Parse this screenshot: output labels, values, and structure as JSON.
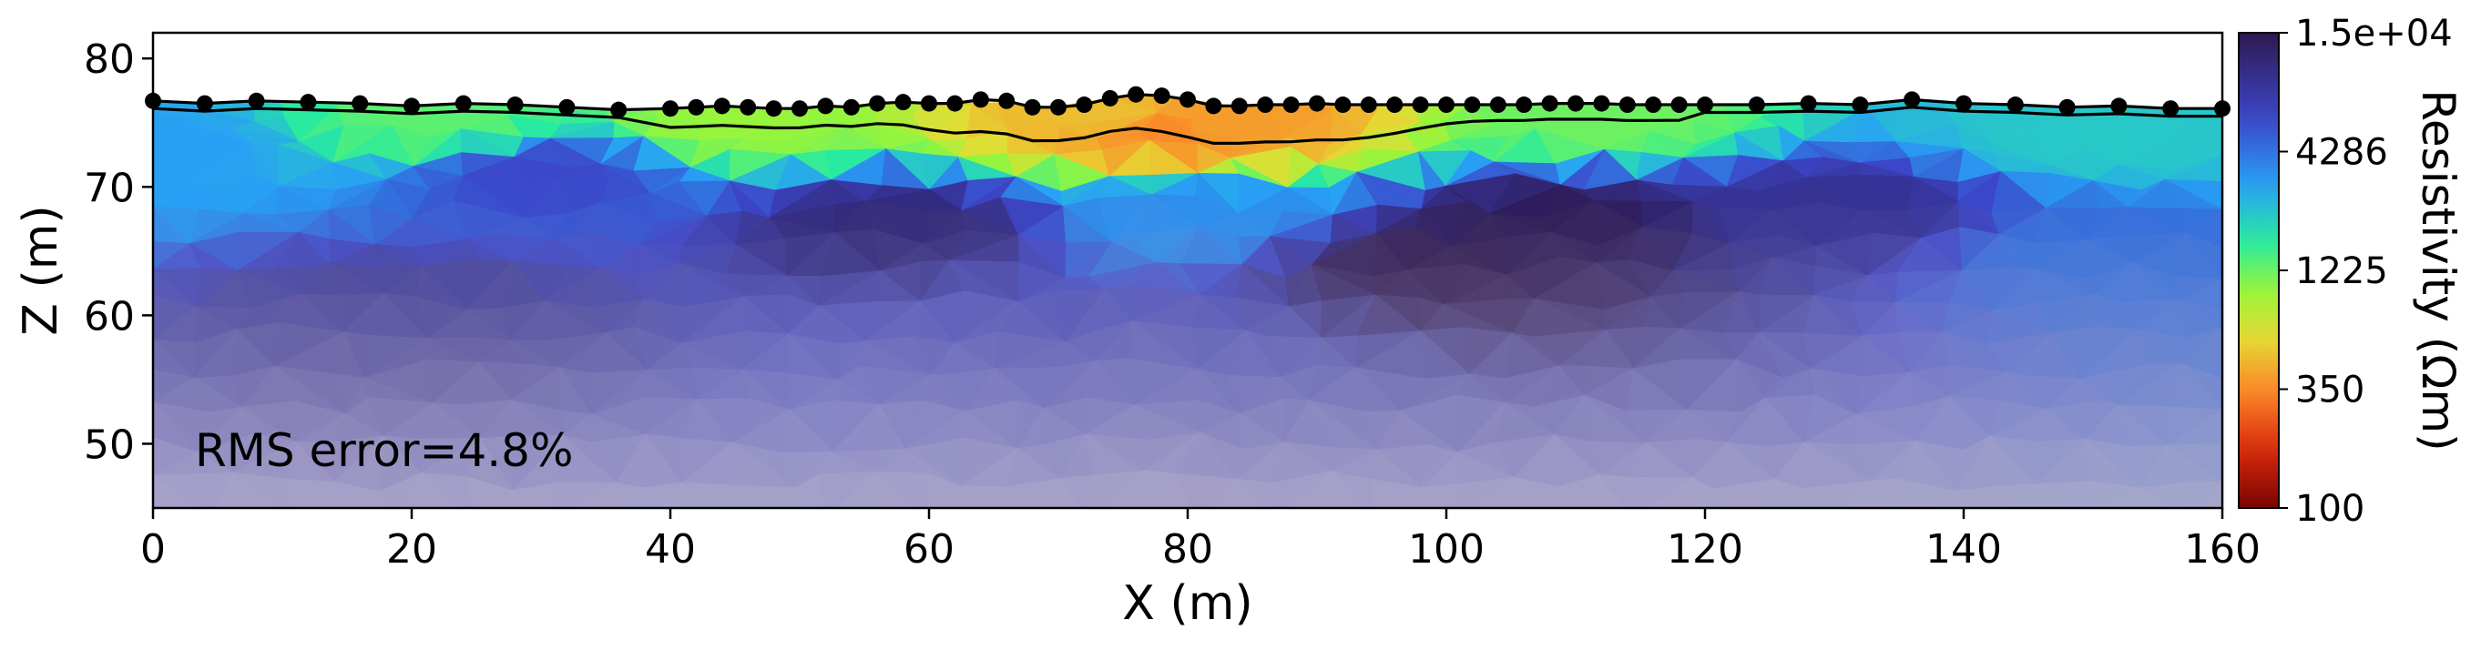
{
  "chart_data": {
    "type": "heatmap",
    "annotation": "RMS error=4.8%",
    "xlabel": "X (m)",
    "ylabel": "Z (m)",
    "xlim": [
      0,
      160
    ],
    "ylim": [
      45,
      82
    ],
    "x_ticks": [
      0,
      20,
      40,
      60,
      80,
      100,
      120,
      140,
      160
    ],
    "y_ticks": [
      50,
      60,
      70,
      80
    ],
    "grid": false,
    "colorbar": {
      "label": "Resistivity (Ωm)",
      "scale": "log",
      "range": [
        100,
        15000
      ],
      "tick_labels": [
        "1.5e+04",
        "4286",
        "1225",
        "350",
        "100"
      ],
      "tick_values": [
        15000,
        4286,
        1225,
        350,
        100
      ]
    },
    "electrodes": {
      "x": [
        0,
        4,
        8,
        12,
        16,
        20,
        24,
        28,
        32,
        36,
        40,
        42,
        44,
        46,
        48,
        50,
        52,
        54,
        56,
        58,
        60,
        62,
        64,
        66,
        68,
        70,
        72,
        74,
        76,
        78,
        80,
        82,
        84,
        86,
        88,
        90,
        92,
        94,
        96,
        98,
        100,
        102,
        104,
        106,
        108,
        110,
        112,
        114,
        116,
        118,
        120,
        124,
        128,
        132,
        136,
        140,
        144,
        148,
        152,
        156,
        160
      ],
      "z": [
        76.7,
        76.5,
        76.7,
        76.6,
        76.5,
        76.3,
        76.5,
        76.4,
        76.2,
        76.0,
        76.1,
        76.2,
        76.3,
        76.2,
        76.1,
        76.1,
        76.3,
        76.2,
        76.5,
        76.6,
        76.5,
        76.5,
        76.8,
        76.7,
        76.2,
        76.2,
        76.4,
        76.9,
        77.2,
        77.1,
        76.8,
        76.3,
        76.3,
        76.4,
        76.4,
        76.5,
        76.4,
        76.4,
        76.4,
        76.4,
        76.4,
        76.4,
        76.4,
        76.4,
        76.5,
        76.5,
        76.5,
        76.4,
        76.4,
        76.4,
        76.4,
        76.4,
        76.5,
        76.4,
        76.8,
        76.5,
        76.4,
        76.2,
        76.3,
        76.1,
        76.1
      ]
    },
    "resistivity_field": {
      "units": "Ωm",
      "anomalies": [
        {
          "x": 78,
          "z": 74.5,
          "value": 350
        },
        {
          "x": 83,
          "z": 75.0,
          "value": 400
        },
        {
          "x": 74,
          "z": 75.5,
          "value": 500
        },
        {
          "x": 45,
          "z": 75.0,
          "value": 1000
        },
        {
          "x": 22,
          "z": 75.0,
          "value": 1300
        },
        {
          "x": 112,
          "z": 75.5,
          "value": 1200
        },
        {
          "x": 150,
          "z": 74.0,
          "value": 2200
        },
        {
          "x": 0,
          "z": 73.0,
          "value": 3000
        },
        {
          "x": 80,
          "z": 68.0,
          "value": 3500
        },
        {
          "x": 30,
          "z": 71.0,
          "value": 6000
        },
        {
          "x": 58,
          "z": 67.0,
          "value": 11000
        },
        {
          "x": 108,
          "z": 67.0,
          "value": 14000
        },
        {
          "x": 100,
          "z": 64.0,
          "value": 15000
        },
        {
          "x": 130,
          "z": 68.0,
          "value": 9000
        },
        {
          "x": 150,
          "z": 65.0,
          "value": 4500
        },
        {
          "x": 75,
          "z": 58.0,
          "value": 7000
        },
        {
          "x": 20,
          "z": 60.0,
          "value": 9000
        }
      ],
      "contour_value": 1225
    }
  }
}
